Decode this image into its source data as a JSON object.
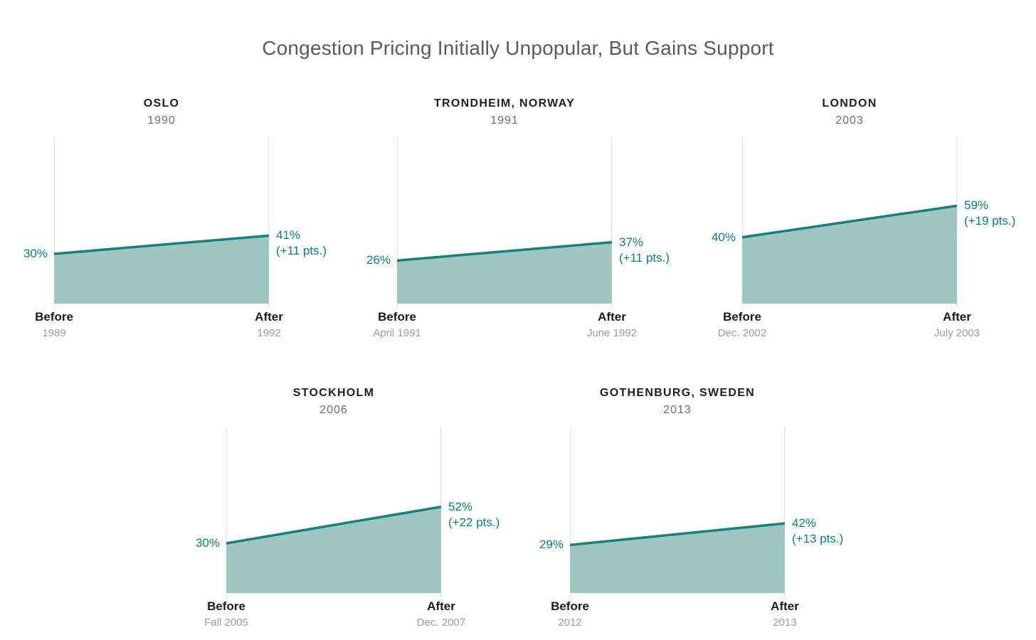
{
  "title": "Congestion Pricing Initially Unpopular, But Gains Support",
  "colors": {
    "trend_line": "#17807c",
    "area_fill": "#9fc6c1",
    "value_text": "#0e7b78",
    "gridline": "#e0e0e0",
    "city_label": "#1f1f1f",
    "year_label": "#6e6e6e",
    "axis_label": "#1b1b1b",
    "axis_date": "#9b9b9b",
    "title_text": "#595a5c",
    "background": "#ffffff"
  },
  "chart_data": {
    "type": "area",
    "title": "Congestion Pricing Initially Unpopular, But Gains Support",
    "unit": "% support",
    "x_categories": [
      "Before",
      "After"
    ],
    "ylim": [
      0,
      100
    ],
    "grid": "vertical-only",
    "legend": "none",
    "axis_labels": {
      "before": "Before",
      "after": "After"
    },
    "panels": [
      {
        "city": "OSLO",
        "year": "1990",
        "before_value": 30,
        "after_value": 41,
        "before_label": "30%",
        "after_label": "41%",
        "change_label": "(+11 pts.)",
        "before_date": "1989",
        "after_date": "1992"
      },
      {
        "city": "TRONDHEIM, NORWAY",
        "year": "1991",
        "before_value": 26,
        "after_value": 37,
        "before_label": "26%",
        "after_label": "37%",
        "change_label": "(+11 pts.)",
        "before_date": "April 1991",
        "after_date": "June 1992"
      },
      {
        "city": "LONDON",
        "year": "2003",
        "before_value": 40,
        "after_value": 59,
        "before_label": "40%",
        "after_label": "59%",
        "change_label": "(+19 pts.)",
        "before_date": "Dec. 2002",
        "after_date": "July 2003"
      },
      {
        "city": "STOCKHOLM",
        "year": "2006",
        "before_value": 30,
        "after_value": 52,
        "before_label": "30%",
        "after_label": "52%",
        "change_label": "(+22 pts.)",
        "before_date": "Fall 2005",
        "after_date": "Dec. 2007"
      },
      {
        "city": "GOTHENBURG, SWEDEN",
        "year": "2013",
        "before_value": 29,
        "after_value": 42,
        "before_label": "29%",
        "after_label": "42%",
        "change_label": "(+13 pts.)",
        "before_date": "2012",
        "after_date": "2013"
      }
    ]
  }
}
